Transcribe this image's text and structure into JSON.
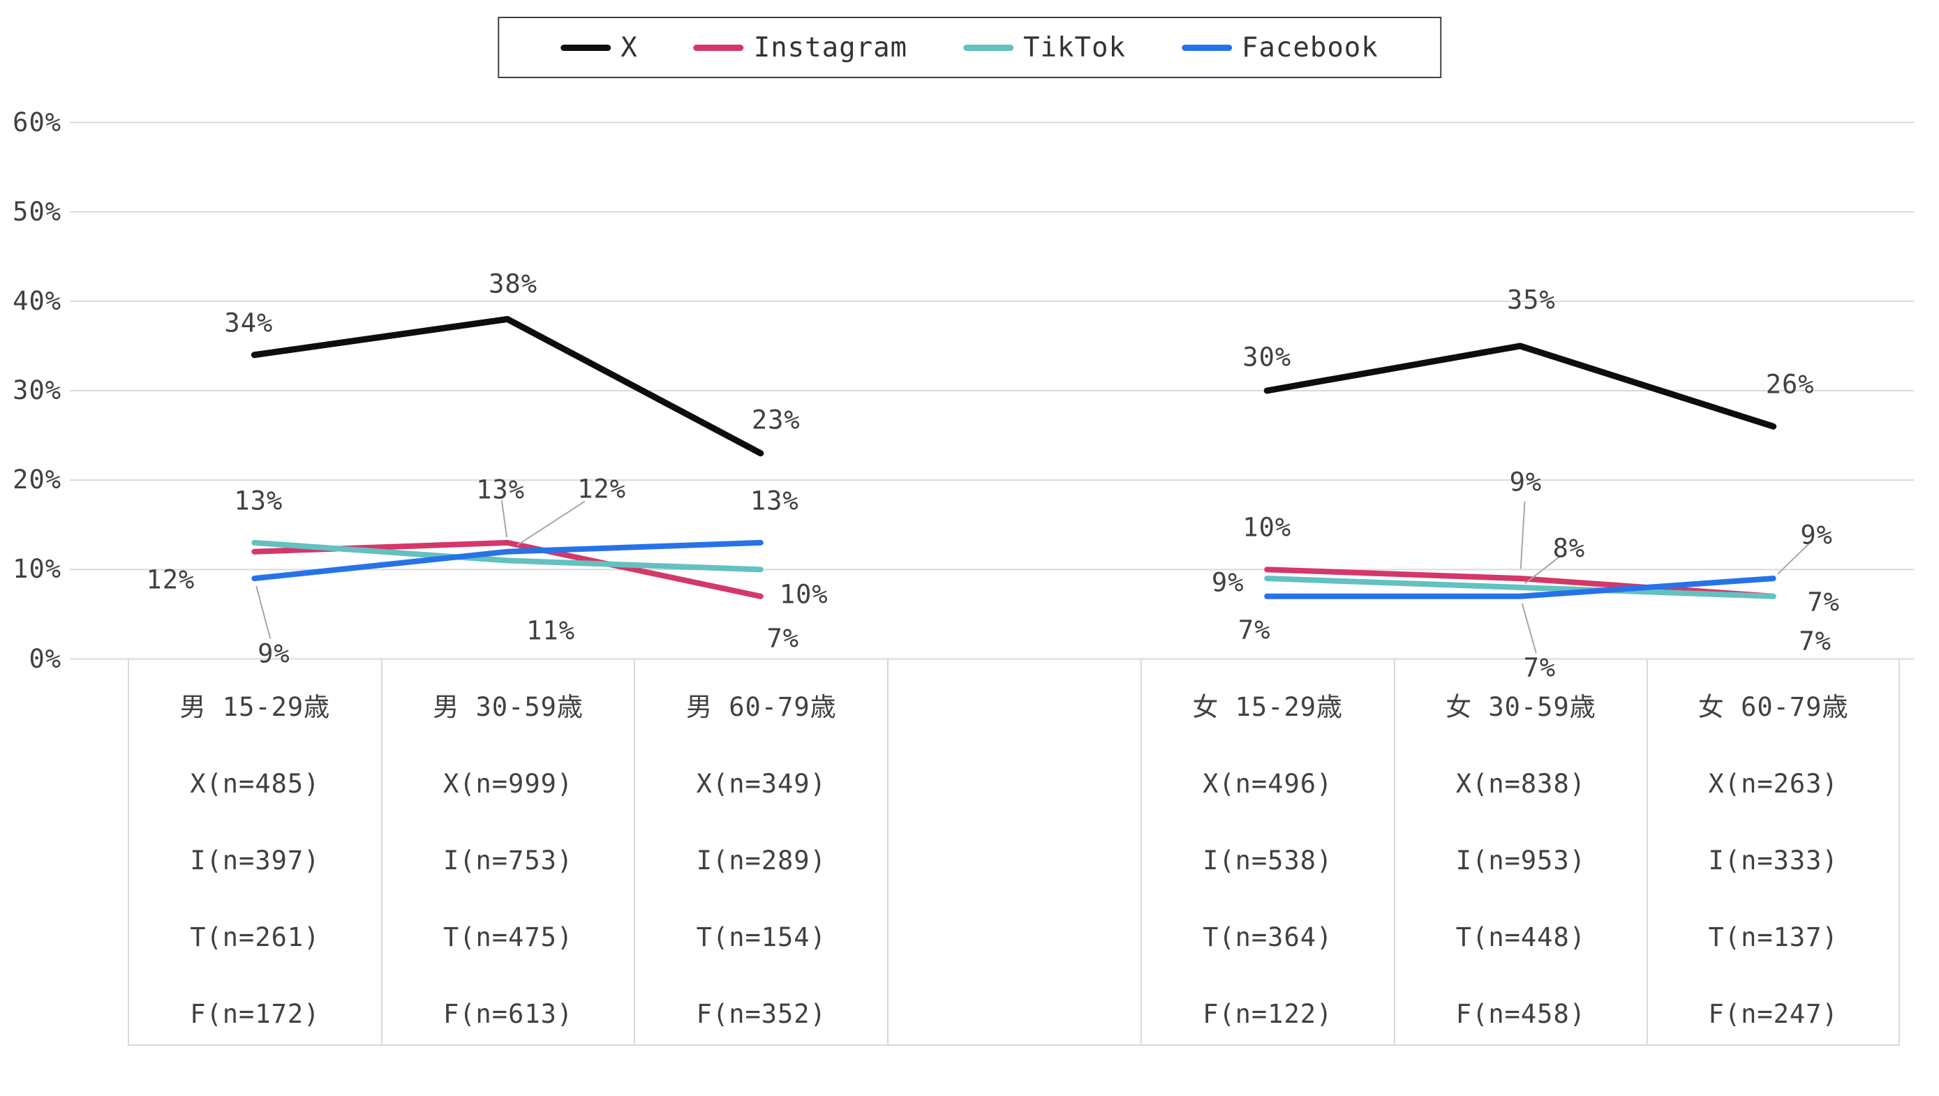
{
  "legend": {
    "items": [
      {
        "label": "X",
        "color": "#0d0d0d"
      },
      {
        "label": "Instagram",
        "color": "#d43768"
      },
      {
        "label": "TikTok",
        "color": "#63c1c0"
      },
      {
        "label": "Facebook",
        "color": "#2673e8"
      }
    ]
  },
  "y_axis": {
    "tick_labels": [
      "0%",
      "10%",
      "20%",
      "30%",
      "40%",
      "50%",
      "60%"
    ]
  },
  "chart_data": {
    "type": "line",
    "title": "",
    "xlabel": "",
    "ylabel": "",
    "ylim": [
      0,
      60
    ],
    "y_ticks": [
      0,
      10,
      20,
      30,
      40,
      50,
      60
    ],
    "grid": true,
    "legend_position": "top-center",
    "value_suffix": "%",
    "groups": [
      {
        "categories": [
          "男 15-29歳",
          "男 30-59歳",
          "男 60-79歳"
        ],
        "series": [
          {
            "name": "X",
            "values": [
              34,
              38,
              23
            ]
          },
          {
            "name": "Instagram",
            "values": [
              12,
              13,
              7
            ]
          },
          {
            "name": "TikTok",
            "values": [
              13,
              11,
              10
            ]
          },
          {
            "name": "Facebook",
            "values": [
              9,
              12,
              13
            ]
          }
        ]
      },
      {
        "categories": [
          "女 15-29歳",
          "女 30-59歳",
          "女 60-79歳"
        ],
        "series": [
          {
            "name": "X",
            "values": [
              30,
              35,
              26
            ]
          },
          {
            "name": "Instagram",
            "values": [
              10,
              9,
              7
            ]
          },
          {
            "name": "TikTok",
            "values": [
              9,
              8,
              7
            ]
          },
          {
            "name": "Facebook",
            "values": [
              7,
              7,
              9
            ]
          }
        ]
      }
    ]
  },
  "table": {
    "columns": [
      {
        "header": "男 15-29歳",
        "rows": [
          "X(n=485)",
          "I(n=397)",
          "T(n=261)",
          "F(n=172)"
        ]
      },
      {
        "header": "男 30-59歳",
        "rows": [
          "X(n=999)",
          "I(n=753)",
          "T(n=475)",
          "F(n=613)"
        ]
      },
      {
        "header": "男 60-79歳",
        "rows": [
          "X(n=349)",
          "I(n=289)",
          "T(n=154)",
          "F(n=352)"
        ]
      },
      {
        "header": "",
        "rows": [
          "",
          "",
          "",
          ""
        ]
      },
      {
        "header": "女 15-29歳",
        "rows": [
          "X(n=496)",
          "I(n=538)",
          "T(n=364)",
          "F(n=122)"
        ]
      },
      {
        "header": "女 30-59歳",
        "rows": [
          "X(n=838)",
          "I(n=953)",
          "T(n=448)",
          "F(n=458)"
        ]
      },
      {
        "header": "女 60-79歳",
        "rows": [
          "X(n=263)",
          "I(n=333)",
          "T(n=137)",
          "F(n=247)"
        ]
      }
    ]
  }
}
